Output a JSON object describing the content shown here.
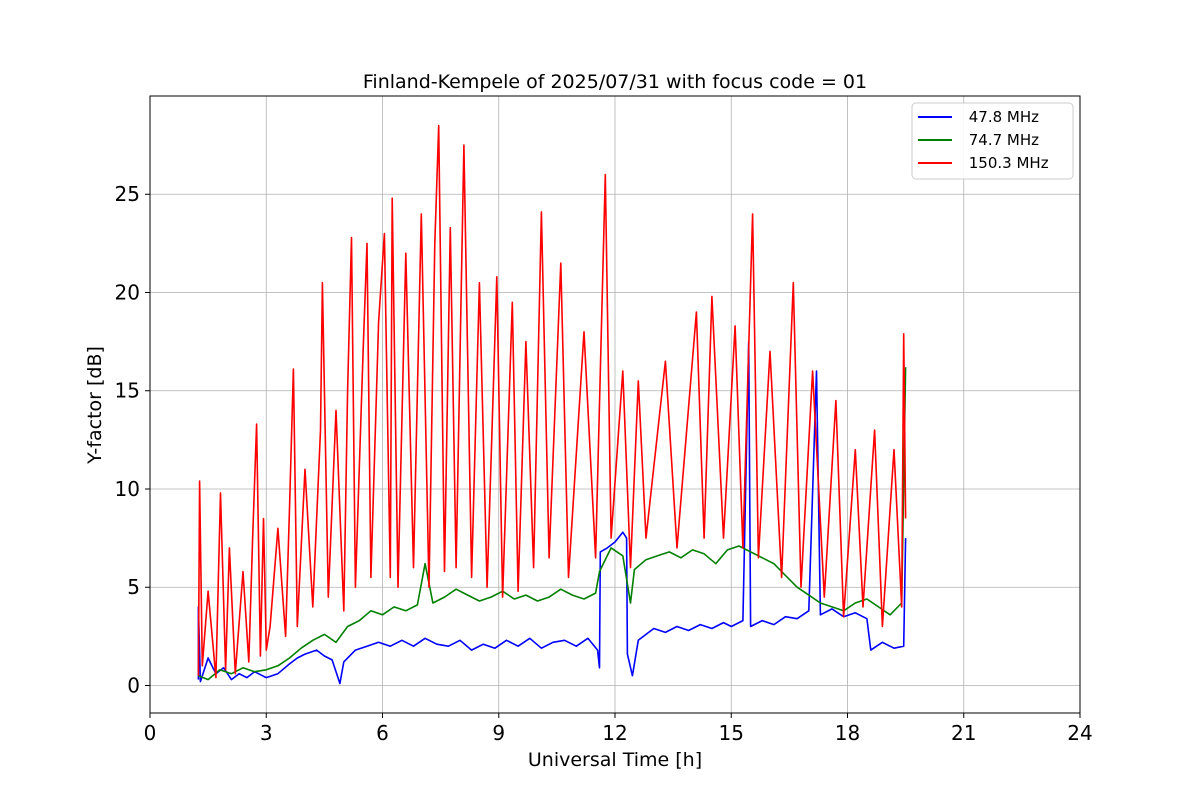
{
  "chart_data": {
    "type": "line",
    "title": "Finland-Kempele of 2025/07/31 with focus code = 01",
    "xlabel": "Universal Time [h]",
    "ylabel": "Y-factor [dB]",
    "xlim": [
      0,
      24
    ],
    "ylim": [
      -1.4,
      30
    ],
    "xticks": [
      0,
      3,
      6,
      9,
      12,
      15,
      18,
      21,
      24
    ],
    "yticks": [
      0,
      5,
      10,
      15,
      20,
      25
    ],
    "grid": true,
    "legend_position": "top-right",
    "series": [
      {
        "name": " 47.8 MHz",
        "color": "#0000ff",
        "points": [
          [
            1.25,
            0.3
          ],
          [
            1.25,
            4.0
          ],
          [
            1.3,
            0.2
          ],
          [
            1.5,
            1.4
          ],
          [
            1.7,
            0.6
          ],
          [
            1.9,
            0.9
          ],
          [
            2.1,
            0.3
          ],
          [
            2.3,
            0.6
          ],
          [
            2.5,
            0.4
          ],
          [
            2.7,
            0.7
          ],
          [
            2.9,
            0.5
          ],
          [
            3.0,
            0.4
          ],
          [
            3.3,
            0.6
          ],
          [
            3.6,
            1.1
          ],
          [
            3.8,
            1.4
          ],
          [
            4.0,
            1.6
          ],
          [
            4.3,
            1.8
          ],
          [
            4.5,
            1.5
          ],
          [
            4.7,
            1.3
          ],
          [
            4.9,
            0.1
          ],
          [
            5.0,
            1.2
          ],
          [
            5.3,
            1.8
          ],
          [
            5.6,
            2.0
          ],
          [
            5.9,
            2.2
          ],
          [
            6.2,
            2.0
          ],
          [
            6.5,
            2.3
          ],
          [
            6.8,
            2.0
          ],
          [
            7.1,
            2.4
          ],
          [
            7.4,
            2.1
          ],
          [
            7.7,
            2.0
          ],
          [
            8.0,
            2.3
          ],
          [
            8.3,
            1.8
          ],
          [
            8.6,
            2.1
          ],
          [
            8.9,
            1.9
          ],
          [
            9.2,
            2.3
          ],
          [
            9.5,
            2.0
          ],
          [
            9.8,
            2.4
          ],
          [
            10.1,
            1.9
          ],
          [
            10.4,
            2.2
          ],
          [
            10.7,
            2.3
          ],
          [
            11.0,
            2.0
          ],
          [
            11.3,
            2.4
          ],
          [
            11.55,
            1.8
          ],
          [
            11.6,
            0.9
          ],
          [
            11.62,
            6.8
          ],
          [
            11.8,
            7.0
          ],
          [
            12.0,
            7.3
          ],
          [
            12.2,
            7.8
          ],
          [
            12.3,
            7.5
          ],
          [
            12.32,
            1.6
          ],
          [
            12.45,
            0.5
          ],
          [
            12.6,
            2.3
          ],
          [
            12.8,
            2.6
          ],
          [
            13.0,
            2.9
          ],
          [
            13.3,
            2.7
          ],
          [
            13.6,
            3.0
          ],
          [
            13.9,
            2.8
          ],
          [
            14.2,
            3.1
          ],
          [
            14.5,
            2.9
          ],
          [
            14.8,
            3.2
          ],
          [
            15.0,
            3.0
          ],
          [
            15.3,
            3.3
          ],
          [
            15.45,
            17.5
          ],
          [
            15.5,
            3.0
          ],
          [
            15.8,
            3.3
          ],
          [
            16.1,
            3.1
          ],
          [
            16.4,
            3.5
          ],
          [
            16.7,
            3.4
          ],
          [
            17.0,
            3.8
          ],
          [
            17.2,
            16.0
          ],
          [
            17.3,
            3.6
          ],
          [
            17.6,
            3.9
          ],
          [
            17.9,
            3.5
          ],
          [
            18.2,
            3.7
          ],
          [
            18.5,
            3.4
          ],
          [
            18.6,
            1.8
          ],
          [
            18.9,
            2.2
          ],
          [
            19.2,
            1.9
          ],
          [
            19.45,
            2.0
          ],
          [
            19.5,
            7.5
          ]
        ]
      },
      {
        "name": " 74.7 MHz",
        "color": "#008000",
        "points": [
          [
            1.25,
            0.5
          ],
          [
            1.5,
            0.3
          ],
          [
            1.8,
            0.8
          ],
          [
            2.1,
            0.6
          ],
          [
            2.4,
            0.9
          ],
          [
            2.7,
            0.7
          ],
          [
            3.0,
            0.8
          ],
          [
            3.3,
            1.0
          ],
          [
            3.6,
            1.4
          ],
          [
            3.9,
            1.9
          ],
          [
            4.2,
            2.3
          ],
          [
            4.5,
            2.6
          ],
          [
            4.8,
            2.2
          ],
          [
            5.1,
            3.0
          ],
          [
            5.4,
            3.3
          ],
          [
            5.7,
            3.8
          ],
          [
            6.0,
            3.6
          ],
          [
            6.3,
            4.0
          ],
          [
            6.6,
            3.8
          ],
          [
            6.9,
            4.1
          ],
          [
            7.1,
            6.2
          ],
          [
            7.3,
            4.2
          ],
          [
            7.6,
            4.5
          ],
          [
            7.9,
            4.9
          ],
          [
            8.2,
            4.6
          ],
          [
            8.5,
            4.3
          ],
          [
            8.8,
            4.5
          ],
          [
            9.1,
            4.8
          ],
          [
            9.4,
            4.4
          ],
          [
            9.7,
            4.6
          ],
          [
            10.0,
            4.3
          ],
          [
            10.3,
            4.5
          ],
          [
            10.6,
            4.9
          ],
          [
            10.9,
            4.6
          ],
          [
            11.2,
            4.4
          ],
          [
            11.5,
            4.7
          ],
          [
            11.6,
            5.8
          ],
          [
            11.9,
            7.0
          ],
          [
            12.2,
            6.6
          ],
          [
            12.4,
            4.2
          ],
          [
            12.5,
            5.9
          ],
          [
            12.8,
            6.4
          ],
          [
            13.1,
            6.6
          ],
          [
            13.4,
            6.8
          ],
          [
            13.7,
            6.5
          ],
          [
            14.0,
            6.9
          ],
          [
            14.3,
            6.7
          ],
          [
            14.6,
            6.2
          ],
          [
            14.9,
            6.9
          ],
          [
            15.2,
            7.1
          ],
          [
            15.5,
            6.8
          ],
          [
            15.8,
            6.5
          ],
          [
            16.1,
            6.2
          ],
          [
            16.4,
            5.6
          ],
          [
            16.7,
            5.0
          ],
          [
            17.0,
            4.6
          ],
          [
            17.3,
            4.2
          ],
          [
            17.6,
            4.0
          ],
          [
            17.9,
            3.8
          ],
          [
            18.2,
            4.2
          ],
          [
            18.5,
            4.4
          ],
          [
            18.8,
            4.0
          ],
          [
            19.1,
            3.6
          ],
          [
            19.4,
            4.2
          ],
          [
            19.5,
            16.2
          ]
        ]
      },
      {
        "name": " 150.3 MHz",
        "color": "#ff0000",
        "points": [
          [
            1.25,
            0.5
          ],
          [
            1.28,
            10.4
          ],
          [
            1.35,
            1.0
          ],
          [
            1.5,
            4.8
          ],
          [
            1.7,
            0.4
          ],
          [
            1.82,
            9.8
          ],
          [
            1.95,
            0.8
          ],
          [
            2.05,
            7.0
          ],
          [
            2.2,
            0.6
          ],
          [
            2.4,
            5.8
          ],
          [
            2.55,
            1.2
          ],
          [
            2.65,
            7.6
          ],
          [
            2.75,
            13.3
          ],
          [
            2.85,
            1.5
          ],
          [
            2.93,
            8.5
          ],
          [
            3.0,
            1.8
          ],
          [
            3.1,
            3.0
          ],
          [
            3.3,
            8.0
          ],
          [
            3.5,
            2.5
          ],
          [
            3.6,
            9.0
          ],
          [
            3.7,
            16.1
          ],
          [
            3.8,
            3.0
          ],
          [
            4.0,
            11.0
          ],
          [
            4.2,
            4.0
          ],
          [
            4.4,
            13.0
          ],
          [
            4.45,
            20.5
          ],
          [
            4.6,
            4.5
          ],
          [
            4.8,
            14.0
          ],
          [
            5.0,
            3.8
          ],
          [
            5.1,
            15.0
          ],
          [
            5.2,
            22.8
          ],
          [
            5.3,
            5.0
          ],
          [
            5.5,
            17.0
          ],
          [
            5.6,
            22.5
          ],
          [
            5.7,
            5.5
          ],
          [
            5.9,
            18.5
          ],
          [
            6.05,
            23.0
          ],
          [
            6.2,
            5.5
          ],
          [
            6.25,
            24.8
          ],
          [
            6.4,
            5.0
          ],
          [
            6.6,
            22.0
          ],
          [
            6.8,
            6.0
          ],
          [
            7.0,
            24.0
          ],
          [
            7.2,
            5.0
          ],
          [
            7.35,
            22.5
          ],
          [
            7.45,
            28.5
          ],
          [
            7.6,
            5.8
          ],
          [
            7.75,
            23.3
          ],
          [
            7.9,
            6.0
          ],
          [
            8.1,
            27.5
          ],
          [
            8.3,
            5.5
          ],
          [
            8.5,
            20.5
          ],
          [
            8.7,
            5.0
          ],
          [
            8.95,
            20.8
          ],
          [
            9.1,
            4.5
          ],
          [
            9.35,
            19.5
          ],
          [
            9.5,
            4.8
          ],
          [
            9.7,
            17.5
          ],
          [
            9.9,
            6.0
          ],
          [
            10.1,
            24.1
          ],
          [
            10.3,
            6.5
          ],
          [
            10.6,
            21.5
          ],
          [
            10.8,
            5.5
          ],
          [
            11.2,
            18.0
          ],
          [
            11.5,
            6.5
          ],
          [
            11.75,
            26.0
          ],
          [
            11.9,
            7.5
          ],
          [
            12.2,
            16.0
          ],
          [
            12.4,
            6.0
          ],
          [
            12.6,
            15.5
          ],
          [
            12.8,
            7.5
          ],
          [
            13.3,
            16.5
          ],
          [
            13.6,
            7.0
          ],
          [
            14.1,
            19.0
          ],
          [
            14.3,
            7.5
          ],
          [
            14.5,
            19.8
          ],
          [
            14.8,
            7.5
          ],
          [
            15.1,
            18.3
          ],
          [
            15.3,
            7.0
          ],
          [
            15.55,
            24.0
          ],
          [
            15.7,
            6.5
          ],
          [
            16.0,
            17.0
          ],
          [
            16.3,
            5.5
          ],
          [
            16.6,
            20.5
          ],
          [
            16.8,
            5.0
          ],
          [
            17.1,
            16.0
          ],
          [
            17.4,
            4.5
          ],
          [
            17.7,
            14.5
          ],
          [
            17.9,
            3.5
          ],
          [
            18.2,
            12.0
          ],
          [
            18.4,
            4.0
          ],
          [
            18.7,
            13.0
          ],
          [
            18.9,
            3.0
          ],
          [
            19.2,
            12.0
          ],
          [
            19.4,
            4.0
          ],
          [
            19.45,
            17.9
          ],
          [
            19.5,
            8.5
          ]
        ]
      }
    ]
  }
}
